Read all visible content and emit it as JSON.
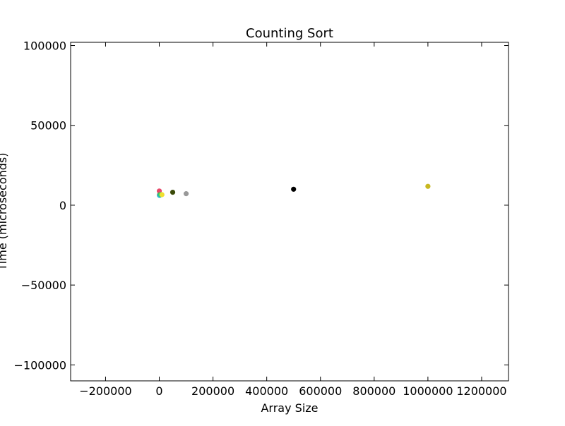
{
  "chart_data": {
    "type": "scatter",
    "title": "Counting Sort",
    "xlabel": "Array Size",
    "ylabel": "Time (microseconds)",
    "xlim": [
      -330000,
      1300000
    ],
    "ylim": [
      -110000,
      102000
    ],
    "x_ticks": [
      -200000,
      0,
      200000,
      400000,
      600000,
      800000,
      1000000,
      1200000
    ],
    "x_tick_labels": [
      "−200000",
      "0",
      "200000",
      "400000",
      "600000",
      "800000",
      "1000000",
      "1200000"
    ],
    "y_ticks": [
      -100000,
      -50000,
      0,
      50000,
      100000
    ],
    "y_tick_labels": [
      "−100000",
      "−50000",
      "0",
      "50000",
      "100000"
    ],
    "grid": false,
    "points": [
      {
        "x": 100,
        "y": 8900,
        "color": "#e8496a"
      },
      {
        "x": 500,
        "y": 6400,
        "color": "#6a8a2a"
      },
      {
        "x": 1000,
        "y": 6100,
        "color": "#2ab5d0"
      },
      {
        "x": 5000,
        "y": 6700,
        "color": "#33cc66"
      },
      {
        "x": 10000,
        "y": 6600,
        "color": "#f0e030"
      },
      {
        "x": 50000,
        "y": 8100,
        "color": "#3a4a08"
      },
      {
        "x": 100000,
        "y": 7200,
        "color": "#999999"
      },
      {
        "x": 500000,
        "y": 10000,
        "color": "#000000"
      },
      {
        "x": 1000000,
        "y": 11800,
        "color": "#c8b820"
      }
    ]
  }
}
